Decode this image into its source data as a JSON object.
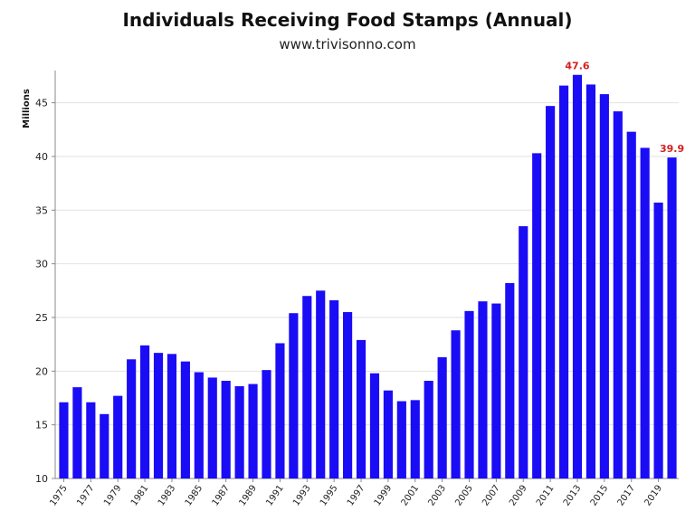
{
  "chart_data": {
    "type": "bar",
    "title": "Individuals Receiving Food Stamps (Annual)",
    "subtitle": "www.trivisonno.com",
    "xlabel": "",
    "ylabel": "Millions",
    "ylim": [
      10,
      48
    ],
    "yticks": [
      10,
      15,
      20,
      25,
      30,
      35,
      40,
      45
    ],
    "grid": true,
    "bar_color": "#1a0cf5",
    "annotation_color": "#d42020",
    "categories": [
      "1975",
      "1976",
      "1977",
      "1978",
      "1979",
      "1980",
      "1981",
      "1982",
      "1983",
      "1984",
      "1985",
      "1986",
      "1987",
      "1988",
      "1989",
      "1990",
      "1991",
      "1992",
      "1993",
      "1994",
      "1995",
      "1996",
      "1997",
      "1998",
      "1999",
      "2000",
      "2001",
      "2002",
      "2003",
      "2004",
      "2005",
      "2006",
      "2007",
      "2008",
      "2009",
      "2010",
      "2011",
      "2012",
      "2013",
      "2014",
      "2015",
      "2016",
      "2017",
      "2018",
      "2019",
      "2020"
    ],
    "xtick_labels": [
      "1975",
      "1977",
      "1979",
      "1981",
      "1983",
      "1985",
      "1987",
      "1989",
      "1991",
      "1993",
      "1995",
      "1997",
      "1999",
      "2001",
      "2003",
      "2005",
      "2007",
      "2009",
      "2011",
      "2013",
      "2015",
      "2017",
      "2019"
    ],
    "values": [
      17.1,
      18.5,
      17.1,
      16.0,
      17.7,
      21.1,
      22.4,
      21.7,
      21.6,
      20.9,
      19.9,
      19.4,
      19.1,
      18.6,
      18.8,
      20.1,
      22.6,
      25.4,
      27.0,
      27.5,
      26.6,
      25.5,
      22.9,
      19.8,
      18.2,
      17.2,
      17.3,
      19.1,
      21.3,
      23.8,
      25.6,
      26.5,
      26.3,
      28.2,
      33.5,
      40.3,
      44.7,
      46.6,
      47.6,
      46.7,
      45.8,
      44.2,
      42.3,
      40.8,
      35.7,
      39.9
    ],
    "annotations": [
      {
        "category": "2013",
        "label": "47.6"
      },
      {
        "category": "2020",
        "label": "39.9"
      }
    ]
  }
}
